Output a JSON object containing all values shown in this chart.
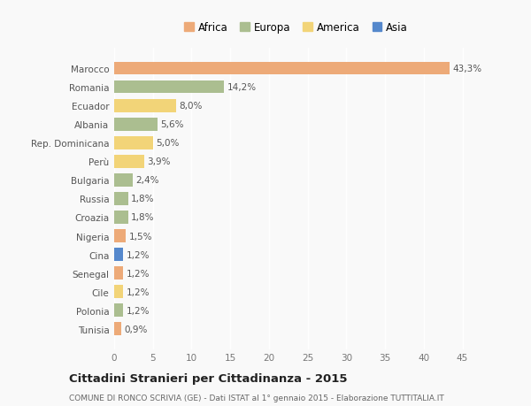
{
  "countries": [
    "Marocco",
    "Romania",
    "Ecuador",
    "Albania",
    "Rep. Dominicana",
    "Perù",
    "Bulgaria",
    "Russia",
    "Croazia",
    "Nigeria",
    "Cina",
    "Senegal",
    "Cile",
    "Polonia",
    "Tunisia"
  ],
  "values": [
    43.3,
    14.2,
    8.0,
    5.6,
    5.0,
    3.9,
    2.4,
    1.8,
    1.8,
    1.5,
    1.2,
    1.2,
    1.2,
    1.2,
    0.9
  ],
  "labels": [
    "43,3%",
    "14,2%",
    "8,0%",
    "5,6%",
    "5,0%",
    "3,9%",
    "2,4%",
    "1,8%",
    "1,8%",
    "1,5%",
    "1,2%",
    "1,2%",
    "1,2%",
    "1,2%",
    "0,9%"
  ],
  "continents": [
    "Africa",
    "Europa",
    "America",
    "Europa",
    "America",
    "America",
    "Europa",
    "Europa",
    "Europa",
    "Africa",
    "Asia",
    "Africa",
    "America",
    "Europa",
    "Africa"
  ],
  "colors": {
    "Africa": "#EDAA78",
    "Europa": "#ABBE90",
    "America": "#F2D478",
    "Asia": "#5588CC"
  },
  "xlim": [
    0,
    47
  ],
  "xticks": [
    0,
    5,
    10,
    15,
    20,
    25,
    30,
    35,
    40,
    45
  ],
  "title": "Cittadini Stranieri per Cittadinanza - 2015",
  "subtitle": "COMUNE DI RONCO SCRIVIA (GE) - Dati ISTAT al 1° gennaio 2015 - Elaborazione TUTTITALIA.IT",
  "bg_color": "#f9f9f9",
  "bar_height": 0.7,
  "label_fontsize": 7.5,
  "tick_fontsize": 7.5,
  "legend_order": [
    "Africa",
    "Europa",
    "America",
    "Asia"
  ]
}
